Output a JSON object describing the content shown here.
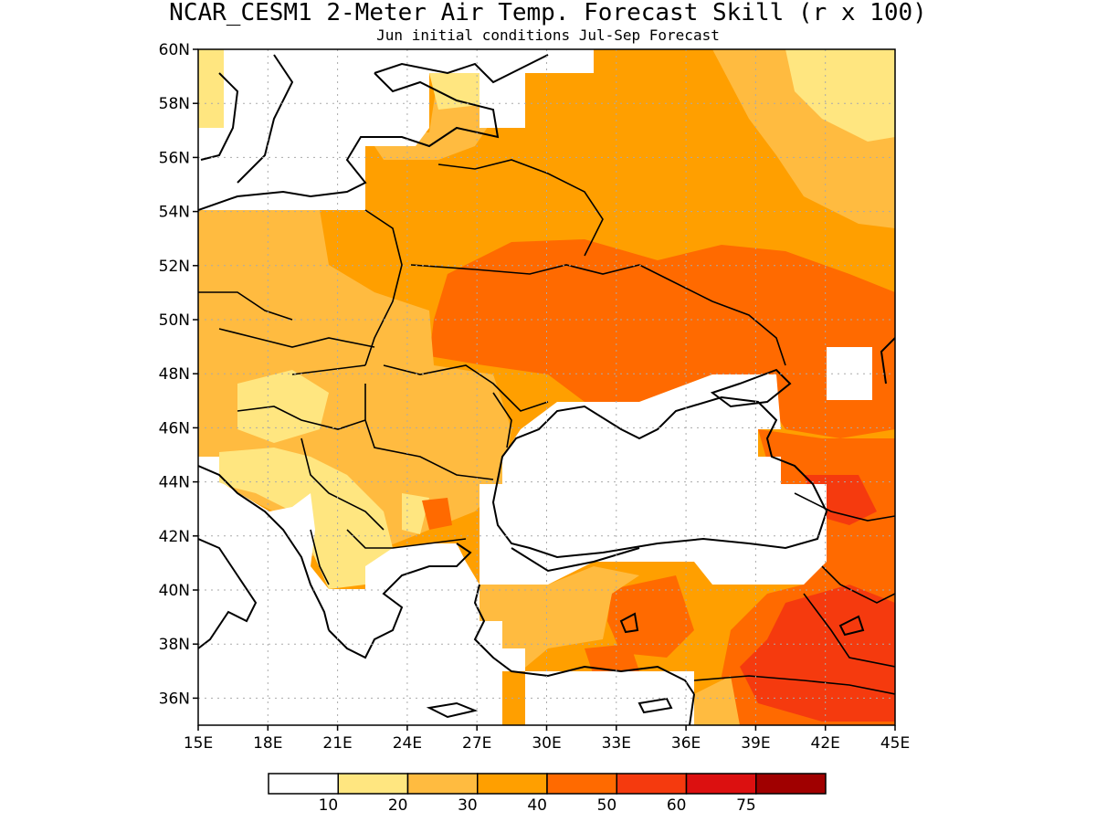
{
  "title": "NCAR_CESM1 2-Meter Air Temp. Forecast Skill (r x 100)",
  "subtitle": "Jun initial conditions  Jul-Sep Forecast",
  "lat_labels": [
    "60N",
    "58N",
    "56N",
    "54N",
    "52N",
    "50N",
    "48N",
    "46N",
    "44N",
    "42N",
    "40N",
    "38N",
    "36N"
  ],
  "lon_labels": [
    "15E",
    "18E",
    "21E",
    "24E",
    "27E",
    "30E",
    "33E",
    "36E",
    "39E",
    "42E",
    "45E"
  ],
  "lat_values": [
    60,
    58,
    56,
    54,
    52,
    50,
    48,
    46,
    44,
    42,
    40,
    38,
    36
  ],
  "lon_values": [
    15,
    18,
    21,
    24,
    27,
    30,
    33,
    36,
    39,
    42,
    45
  ],
  "extent": {
    "lon_min": 15,
    "lon_max": 45,
    "lat_min": 35,
    "lat_max": 60
  },
  "grid": true,
  "colorbar": {
    "labels": [
      "10",
      "20",
      "30",
      "40",
      "50",
      "60",
      "75"
    ],
    "colors": [
      "#ffffff",
      "#ffe680",
      "#ffbb40",
      "#ff9f00",
      "#ff6a00",
      "#f53a0e",
      "#dc1010",
      "#a00000"
    ]
  },
  "colors": {
    "lt10": "#ffffff",
    "c10_20": "#ffe680",
    "c20_30": "#ffbb40",
    "c30_40": "#ff9f00",
    "c40_50": "#ff6a00",
    "c50_60": "#f53a0e",
    "coast": "#000000",
    "grid": "#aaaaaa"
  }
}
